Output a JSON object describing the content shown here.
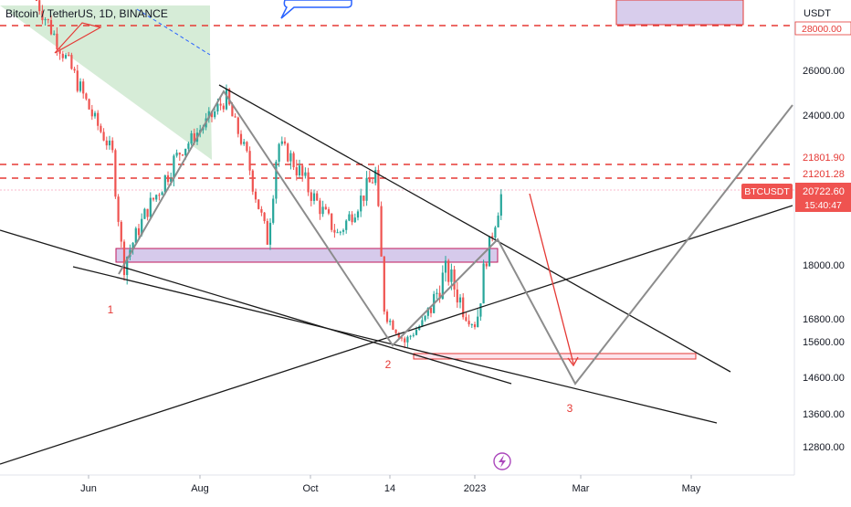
{
  "header": {
    "symbol_title": "Bitcoin / TetherUS, 1D, BINANCE"
  },
  "axis": {
    "currency": "USDT"
  },
  "colors": {
    "candle_up": "#26a69a",
    "candle_down": "#ef5350",
    "trendline": "#1a1a1a",
    "projection_line": "#8c8c8c",
    "dashed_level": "#e53935",
    "zone_fill": "#d1c4e9",
    "zone_border": "#c2185b",
    "wave_label": "#e53935",
    "price_badge": "#ef5350",
    "triangle_fill": "#c8e6c9"
  },
  "chart_data": {
    "type": "candlestick",
    "title": "Bitcoin / TetherUS, 1D, BINANCE",
    "xlabel": "",
    "ylabel": "",
    "y_unit": "USDT",
    "x_ticks": [
      "Jun",
      "Aug",
      "Oct",
      "14",
      "2023",
      "Mar",
      "May"
    ],
    "y_ticks": [
      12800.0,
      13600.0,
      14600.0,
      15600.0,
      16800.0,
      18000.0,
      24000.0,
      26000.0
    ],
    "ylim": [
      12300,
      29500
    ],
    "price_labels": {
      "level_top": "28000.00",
      "level_1": "21801.90",
      "level_2": "21201.28",
      "last": "20722.60",
      "ticker": "BTCUSDT",
      "countdown": "15:40:47"
    },
    "dashed_levels": [
      28000,
      21801.9,
      21201.28
    ],
    "approx_price_path": [
      {
        "x": "May 2022",
        "close": 29500
      },
      {
        "x": "Jun 12 2022",
        "close": 22000
      },
      {
        "x": "Jun 18 2022",
        "close": 18000
      },
      {
        "x": "Jul 1 2022",
        "close": 20000
      },
      {
        "x": "Aug 14 2022",
        "close": 24800
      },
      {
        "x": "Sep 6 2022",
        "close": 18900
      },
      {
        "x": "Sep 12 2022",
        "close": 22500
      },
      {
        "x": "Oct 15 2022",
        "close": 19100
      },
      {
        "x": "Nov 5 2022",
        "close": 21300
      },
      {
        "x": "Nov 9 2022",
        "close": 17200
      },
      {
        "x": "Nov 21 2022",
        "close": 15600
      },
      {
        "x": "Dec 14 2022",
        "close": 17900
      },
      {
        "x": "Dec 30 2022",
        "close": 16500
      },
      {
        "x": "Jan 14 2023",
        "close": 20722.6
      }
    ],
    "wave_labels": [
      "1",
      "2",
      "3"
    ],
    "legend": "none"
  }
}
